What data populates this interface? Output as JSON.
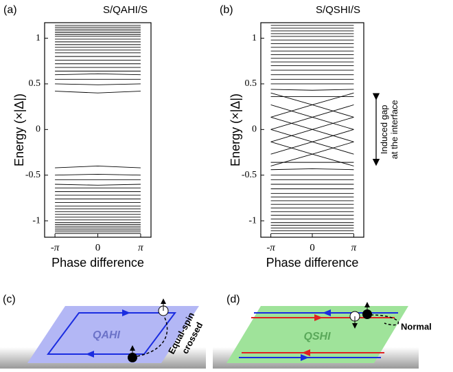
{
  "chart_data": [
    {
      "type": "line",
      "panel_label": "(a)",
      "title": "S/QAHI/S",
      "x_label": "Phase difference",
      "y_label": "Energy (×|Δ|)",
      "x": [
        -3.1416,
        0,
        3.1416
      ],
      "xlim": [
        -3.9,
        3.9
      ],
      "ylim": [
        -1.18,
        1.17
      ],
      "xticks": [
        {
          "value": -3.1416,
          "label": "-π"
        },
        0,
        {
          "value": 3.1416,
          "label": "π"
        }
      ],
      "yticks": [
        -1,
        -0.5,
        0,
        0.5,
        1
      ],
      "color": "#000000",
      "series": [
        {
          "values": [
            0.42,
            0.4,
            0.42
          ]
        },
        {
          "values": [
            0.5,
            0.49,
            0.5
          ]
        },
        {
          "values": [
            0.55,
            0.55,
            0.55
          ]
        },
        {
          "values": [
            0.6,
            0.61,
            0.6
          ]
        },
        {
          "values": [
            0.64,
            0.64,
            0.64
          ]
        },
        {
          "values": [
            0.68,
            0.68,
            0.68
          ]
        },
        {
          "values": [
            0.72,
            0.72,
            0.72
          ]
        },
        {
          "values": [
            0.76,
            0.76,
            0.76
          ]
        },
        {
          "values": [
            0.8,
            0.8,
            0.8
          ]
        },
        {
          "values": [
            0.84,
            0.84,
            0.84
          ]
        },
        {
          "values": [
            0.87,
            0.87,
            0.87
          ]
        },
        {
          "values": [
            0.9,
            0.9,
            0.9
          ]
        },
        {
          "values": [
            0.93,
            0.93,
            0.93
          ]
        },
        {
          "values": [
            0.96,
            0.96,
            0.96
          ]
        },
        {
          "values": [
            0.99,
            0.99,
            0.99
          ]
        },
        {
          "values": [
            1.02,
            1.02,
            1.02
          ]
        },
        {
          "values": [
            1.04,
            1.04,
            1.04
          ]
        },
        {
          "values": [
            1.06,
            1.06,
            1.06
          ]
        },
        {
          "values": [
            1.08,
            1.08,
            1.08
          ]
        },
        {
          "values": [
            1.1,
            1.1,
            1.1
          ]
        },
        {
          "values": [
            1.12,
            1.12,
            1.12
          ]
        },
        {
          "values": [
            1.14,
            1.14,
            1.14
          ]
        },
        {
          "values": [
            -0.42,
            -0.4,
            -0.42
          ]
        },
        {
          "values": [
            -0.5,
            -0.49,
            -0.5
          ]
        },
        {
          "values": [
            -0.55,
            -0.55,
            -0.55
          ]
        },
        {
          "values": [
            -0.6,
            -0.61,
            -0.6
          ]
        },
        {
          "values": [
            -0.64,
            -0.64,
            -0.64
          ]
        },
        {
          "values": [
            -0.68,
            -0.68,
            -0.68
          ]
        },
        {
          "values": [
            -0.72,
            -0.72,
            -0.72
          ]
        },
        {
          "values": [
            -0.76,
            -0.76,
            -0.76
          ]
        },
        {
          "values": [
            -0.8,
            -0.8,
            -0.8
          ]
        },
        {
          "values": [
            -0.84,
            -0.84,
            -0.84
          ]
        },
        {
          "values": [
            -0.87,
            -0.87,
            -0.87
          ]
        },
        {
          "values": [
            -0.9,
            -0.9,
            -0.9
          ]
        },
        {
          "values": [
            -0.93,
            -0.93,
            -0.93
          ]
        },
        {
          "values": [
            -0.96,
            -0.96,
            -0.96
          ]
        },
        {
          "values": [
            -0.99,
            -0.99,
            -0.99
          ]
        },
        {
          "values": [
            -1.02,
            -1.02,
            -1.02
          ]
        },
        {
          "values": [
            -1.04,
            -1.04,
            -1.04
          ]
        },
        {
          "values": [
            -1.06,
            -1.06,
            -1.06
          ]
        },
        {
          "values": [
            -1.08,
            -1.08,
            -1.08
          ]
        },
        {
          "values": [
            -1.1,
            -1.1,
            -1.1
          ]
        },
        {
          "values": [
            -1.12,
            -1.12,
            -1.12
          ]
        },
        {
          "values": [
            -1.14,
            -1.14,
            -1.14
          ]
        }
      ]
    },
    {
      "type": "line",
      "panel_label": "(b)",
      "title": "S/QSHI/S",
      "x_label": "Phase difference",
      "y_label": "Energy (×|Δ|)",
      "annotation": "Induced gap at the interface",
      "x": [
        -3.1416,
        0,
        3.1416
      ],
      "xlim": [
        -3.9,
        3.9
      ],
      "ylim": [
        -1.18,
        1.17
      ],
      "xticks": [
        {
          "value": -3.1416,
          "label": "-π"
        },
        0,
        {
          "value": 3.1416,
          "label": "π"
        }
      ],
      "yticks": [
        -1,
        -0.5,
        0,
        0.5,
        1
      ],
      "color": "#000000",
      "series": [
        {
          "values": [
            0.4,
            0.27,
            0.135
          ]
        },
        {
          "values": [
            0.135,
            0.27,
            0.4
          ]
        },
        {
          "values": [
            0.27,
            0.135,
            0
          ]
        },
        {
          "values": [
            0,
            0.135,
            0.27
          ]
        },
        {
          "values": [
            0.135,
            0,
            -0.135
          ]
        },
        {
          "values": [
            -0.135,
            0,
            0.135
          ]
        },
        {
          "values": [
            -0.27,
            -0.135,
            0
          ]
        },
        {
          "values": [
            0,
            -0.135,
            -0.27
          ]
        },
        {
          "values": [
            -0.4,
            -0.27,
            -0.135
          ]
        },
        {
          "values": [
            -0.135,
            -0.27,
            -0.4
          ]
        },
        {
          "values": [
            0.36,
            0.36,
            0.36
          ]
        },
        {
          "values": [
            0.44,
            0.43,
            0.44
          ]
        },
        {
          "values": [
            0.5,
            0.5,
            0.5
          ]
        },
        {
          "values": [
            0.55,
            0.55,
            0.55
          ]
        },
        {
          "values": [
            0.6,
            0.6,
            0.6
          ]
        },
        {
          "values": [
            0.65,
            0.65,
            0.65
          ]
        },
        {
          "values": [
            0.7,
            0.7,
            0.7
          ]
        },
        {
          "values": [
            0.74,
            0.74,
            0.74
          ]
        },
        {
          "values": [
            0.78,
            0.78,
            0.78
          ]
        },
        {
          "values": [
            0.82,
            0.82,
            0.82
          ]
        },
        {
          "values": [
            0.86,
            0.86,
            0.86
          ]
        },
        {
          "values": [
            0.9,
            0.9,
            0.9
          ]
        },
        {
          "values": [
            0.94,
            0.94,
            0.94
          ]
        },
        {
          "values": [
            0.98,
            0.98,
            0.98
          ]
        },
        {
          "values": [
            1.02,
            1.02,
            1.02
          ]
        },
        {
          "values": [
            1.05,
            1.05,
            1.05
          ]
        },
        {
          "values": [
            1.08,
            1.08,
            1.08
          ]
        },
        {
          "values": [
            1.11,
            1.11,
            1.11
          ]
        },
        {
          "values": [
            1.14,
            1.14,
            1.14
          ]
        },
        {
          "values": [
            -0.36,
            -0.36,
            -0.36
          ]
        },
        {
          "values": [
            -0.44,
            -0.43,
            -0.44
          ]
        },
        {
          "values": [
            -0.5,
            -0.5,
            -0.5
          ]
        },
        {
          "values": [
            -0.55,
            -0.55,
            -0.55
          ]
        },
        {
          "values": [
            -0.6,
            -0.6,
            -0.6
          ]
        },
        {
          "values": [
            -0.65,
            -0.65,
            -0.65
          ]
        },
        {
          "values": [
            -0.7,
            -0.7,
            -0.7
          ]
        },
        {
          "values": [
            -0.74,
            -0.74,
            -0.74
          ]
        },
        {
          "values": [
            -0.78,
            -0.78,
            -0.78
          ]
        },
        {
          "values": [
            -0.82,
            -0.82,
            -0.82
          ]
        },
        {
          "values": [
            -0.86,
            -0.86,
            -0.86
          ]
        },
        {
          "values": [
            -0.9,
            -0.9,
            -0.9
          ]
        },
        {
          "values": [
            -0.94,
            -0.94,
            -0.94
          ]
        },
        {
          "values": [
            -0.98,
            -0.98,
            -0.98
          ]
        },
        {
          "values": [
            -1.02,
            -1.02,
            -1.02
          ]
        },
        {
          "values": [
            -1.05,
            -1.05,
            -1.05
          ]
        },
        {
          "values": [
            -1.08,
            -1.08,
            -1.08
          ]
        },
        {
          "values": [
            -1.11,
            -1.11,
            -1.11
          ]
        },
        {
          "values": [
            -1.14,
            -1.14,
            -1.14
          ]
        }
      ]
    }
  ],
  "diagrams": {
    "c": {
      "label": "(c)",
      "material": "QAHI",
      "note_line1": "Equal-spin",
      "note_line2": "crossed"
    },
    "d": {
      "label": "(d)",
      "material": "QSHI",
      "note": "Normal"
    }
  }
}
